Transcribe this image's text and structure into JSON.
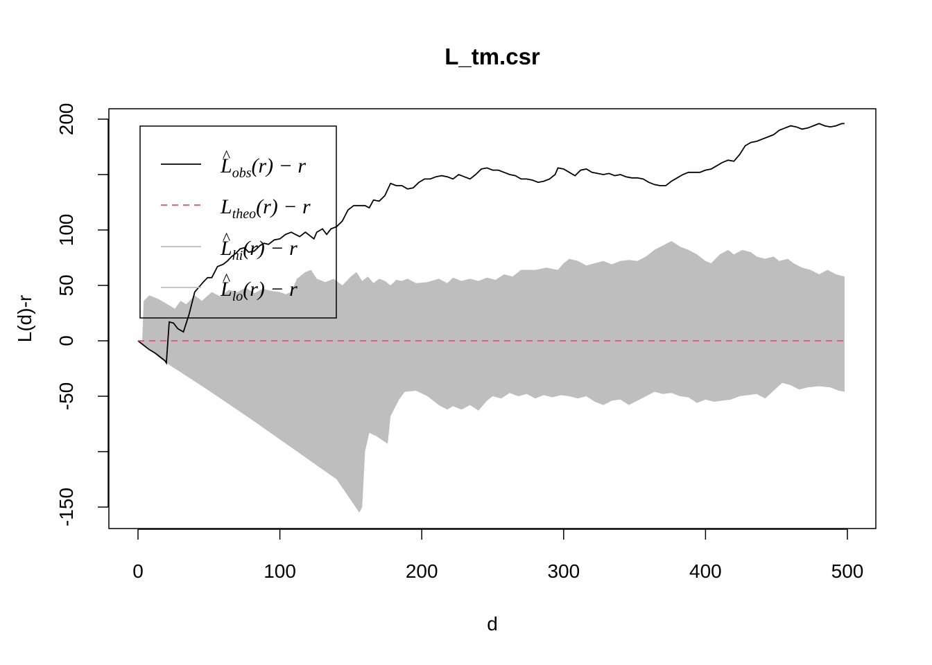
{
  "chart_data": {
    "type": "line",
    "title": "L_tm.csr",
    "xlabel": "d",
    "ylabel": "L(d)-r",
    "xlim": [
      -10,
      520
    ],
    "ylim": [
      -170,
      210
    ],
    "x_ticks": [
      0,
      100,
      200,
      300,
      400,
      500
    ],
    "x_tick_labels": [
      "0",
      "100",
      "200",
      "300",
      "400",
      "500"
    ],
    "y_ticks": [
      -150,
      -100,
      -50,
      0,
      50,
      100,
      150,
      200
    ],
    "y_tick_labels": [
      "-150",
      "",
      "-50",
      "0",
      "50",
      "100",
      "",
      "200"
    ],
    "legend_position": "top-left",
    "grid": false,
    "legend": [
      {
        "base": "L",
        "hat": true,
        "sub": "obs",
        "suffix": "(r) − r",
        "style": "solid",
        "color": "#000000"
      },
      {
        "base": "L",
        "hat": false,
        "sub": "theo",
        "suffix": "(r) − r",
        "style": "dashed",
        "color": "#DF536B"
      },
      {
        "base": "L",
        "hat": true,
        "sub": "hi",
        "suffix": "(r) − r",
        "style": "solid",
        "color": "#BEBEBE"
      },
      {
        "base": "L",
        "hat": true,
        "sub": "lo",
        "suffix": "(r) − r",
        "style": "solid",
        "color": "#BEBEBE"
      }
    ],
    "envelope": {
      "color": "#BEBEBE",
      "hi": [
        [
          0,
          0
        ],
        [
          3,
          0
        ],
        [
          4,
          36
        ],
        [
          8,
          41
        ],
        [
          14,
          38
        ],
        [
          22,
          32
        ],
        [
          26,
          29
        ],
        [
          30,
          36
        ],
        [
          34,
          33
        ],
        [
          40,
          41
        ],
        [
          45,
          36
        ],
        [
          52,
          44
        ],
        [
          58,
          40
        ],
        [
          64,
          46
        ],
        [
          70,
          44
        ],
        [
          76,
          48
        ],
        [
          82,
          43
        ],
        [
          88,
          47
        ],
        [
          94,
          45
        ],
        [
          100,
          44
        ],
        [
          104,
          42
        ],
        [
          108,
          44
        ],
        [
          112,
          56
        ],
        [
          118,
          62
        ],
        [
          122,
          64
        ],
        [
          126,
          56
        ],
        [
          132,
          53
        ],
        [
          138,
          56
        ],
        [
          144,
          50
        ],
        [
          150,
          58
        ],
        [
          154,
          62
        ],
        [
          158,
          54
        ],
        [
          162,
          58
        ],
        [
          166,
          52
        ],
        [
          170,
          56
        ],
        [
          174,
          54
        ],
        [
          178,
          50
        ],
        [
          182,
          55
        ],
        [
          186,
          54
        ],
        [
          190,
          56
        ],
        [
          196,
          52
        ],
        [
          204,
          53
        ],
        [
          212,
          56
        ],
        [
          218,
          52
        ],
        [
          222,
          57
        ],
        [
          228,
          54
        ],
        [
          234,
          56
        ],
        [
          240,
          54
        ],
        [
          246,
          57
        ],
        [
          252,
          55
        ],
        [
          258,
          60
        ],
        [
          264,
          58
        ],
        [
          270,
          64
        ],
        [
          280,
          64
        ],
        [
          288,
          66
        ],
        [
          296,
          64
        ],
        [
          300,
          70
        ],
        [
          304,
          74
        ],
        [
          310,
          72
        ],
        [
          316,
          68
        ],
        [
          322,
          70
        ],
        [
          328,
          72
        ],
        [
          334,
          69
        ],
        [
          340,
          72
        ],
        [
          346,
          73
        ],
        [
          352,
          72
        ],
        [
          358,
          76
        ],
        [
          364,
          82
        ],
        [
          370,
          86
        ],
        [
          376,
          90
        ],
        [
          382,
          85
        ],
        [
          388,
          82
        ],
        [
          394,
          78
        ],
        [
          400,
          72
        ],
        [
          404,
          70
        ],
        [
          410,
          78
        ],
        [
          416,
          82
        ],
        [
          420,
          78
        ],
        [
          426,
          82
        ],
        [
          432,
          80
        ],
        [
          436,
          76
        ],
        [
          442,
          74
        ],
        [
          448,
          76
        ],
        [
          452,
          72
        ],
        [
          458,
          74
        ],
        [
          462,
          70
        ],
        [
          468,
          66
        ],
        [
          474,
          64
        ],
        [
          480,
          60
        ],
        [
          486,
          64
        ],
        [
          492,
          60
        ],
        [
          498,
          58
        ]
      ],
      "lo": [
        [
          0,
          0
        ],
        [
          20,
          -20
        ],
        [
          50,
          -45
        ],
        [
          80,
          -71
        ],
        [
          110,
          -98
        ],
        [
          140,
          -125
        ],
        [
          156,
          -155
        ],
        [
          158,
          -150
        ],
        [
          160,
          -100
        ],
        [
          163,
          -83
        ],
        [
          168,
          -86
        ],
        [
          176,
          -93
        ],
        [
          178,
          -68
        ],
        [
          184,
          -53
        ],
        [
          188,
          -46
        ],
        [
          196,
          -45
        ],
        [
          204,
          -50
        ],
        [
          212,
          -58
        ],
        [
          218,
          -62
        ],
        [
          222,
          -59
        ],
        [
          228,
          -62
        ],
        [
          234,
          -58
        ],
        [
          240,
          -63
        ],
        [
          246,
          -54
        ],
        [
          250,
          -50
        ],
        [
          256,
          -52
        ],
        [
          262,
          -47
        ],
        [
          268,
          -50
        ],
        [
          274,
          -48
        ],
        [
          280,
          -52
        ],
        [
          286,
          -49
        ],
        [
          292,
          -51
        ],
        [
          298,
          -49
        ],
        [
          304,
          -50
        ],
        [
          310,
          -52
        ],
        [
          316,
          -50
        ],
        [
          322,
          -55
        ],
        [
          328,
          -58
        ],
        [
          334,
          -54
        ],
        [
          340,
          -53
        ],
        [
          346,
          -58
        ],
        [
          352,
          -54
        ],
        [
          358,
          -50
        ],
        [
          364,
          -46
        ],
        [
          370,
          -48
        ],
        [
          376,
          -47
        ],
        [
          382,
          -50
        ],
        [
          388,
          -51
        ],
        [
          394,
          -56
        ],
        [
          400,
          -53
        ],
        [
          406,
          -55
        ],
        [
          412,
          -54
        ],
        [
          418,
          -53
        ],
        [
          424,
          -50
        ],
        [
          430,
          -49
        ],
        [
          436,
          -48
        ],
        [
          442,
          -52
        ],
        [
          448,
          -45
        ],
        [
          454,
          -38
        ],
        [
          460,
          -40
        ],
        [
          466,
          -44
        ],
        [
          472,
          -42
        ],
        [
          480,
          -41
        ],
        [
          488,
          -42
        ],
        [
          494,
          -45
        ],
        [
          498,
          -46
        ]
      ]
    },
    "series": [
      {
        "name": "Lobs",
        "color": "#000000",
        "dash": "",
        "data": [
          [
            0,
            0
          ],
          [
            4,
            -4
          ],
          [
            8,
            -8
          ],
          [
            12,
            -11
          ],
          [
            16,
            -15
          ],
          [
            19,
            -18
          ],
          [
            20,
            -20
          ],
          [
            22,
            17
          ],
          [
            25,
            16
          ],
          [
            28,
            11
          ],
          [
            32,
            8
          ],
          [
            36,
            24
          ],
          [
            40,
            44
          ],
          [
            42,
            47
          ],
          [
            46,
            53
          ],
          [
            49,
            57
          ],
          [
            52,
            57
          ],
          [
            56,
            67
          ],
          [
            60,
            69
          ],
          [
            63,
            72
          ],
          [
            66,
            76
          ],
          [
            69,
            79
          ],
          [
            72,
            83
          ],
          [
            75,
            84
          ],
          [
            78,
            80
          ],
          [
            82,
            81
          ],
          [
            86,
            86
          ],
          [
            89,
            88
          ],
          [
            92,
            87
          ],
          [
            96,
            91
          ],
          [
            100,
            92
          ],
          [
            104,
            96
          ],
          [
            108,
            98
          ],
          [
            111,
            96
          ],
          [
            114,
            94
          ],
          [
            118,
            98
          ],
          [
            122,
            94
          ],
          [
            124,
            92
          ],
          [
            126,
            98
          ],
          [
            130,
            101
          ],
          [
            133,
            96
          ],
          [
            136,
            101
          ],
          [
            140,
            103
          ],
          [
            144,
            108
          ],
          [
            148,
            118
          ],
          [
            152,
            122
          ],
          [
            156,
            122
          ],
          [
            160,
            122
          ],
          [
            163,
            120
          ],
          [
            166,
            127
          ],
          [
            170,
            126
          ],
          [
            174,
            131
          ],
          [
            178,
            142
          ],
          [
            182,
            140
          ],
          [
            186,
            140
          ],
          [
            190,
            137
          ],
          [
            194,
            138
          ],
          [
            198,
            143
          ],
          [
            202,
            146
          ],
          [
            206,
            146
          ],
          [
            210,
            148
          ],
          [
            214,
            149
          ],
          [
            218,
            148
          ],
          [
            222,
            146
          ],
          [
            226,
            150
          ],
          [
            230,
            148
          ],
          [
            234,
            146
          ],
          [
            238,
            150
          ],
          [
            242,
            155
          ],
          [
            246,
            156
          ],
          [
            250,
            154
          ],
          [
            254,
            154
          ],
          [
            258,
            152
          ],
          [
            262,
            150
          ],
          [
            266,
            149
          ],
          [
            270,
            146
          ],
          [
            274,
            146
          ],
          [
            278,
            145
          ],
          [
            282,
            143
          ],
          [
            286,
            144
          ],
          [
            290,
            146
          ],
          [
            294,
            150
          ],
          [
            296,
            156
          ],
          [
            300,
            155
          ],
          [
            304,
            152
          ],
          [
            308,
            149
          ],
          [
            312,
            154
          ],
          [
            316,
            155
          ],
          [
            320,
            152
          ],
          [
            324,
            151
          ],
          [
            328,
            150
          ],
          [
            332,
            151
          ],
          [
            336,
            149
          ],
          [
            340,
            150
          ],
          [
            344,
            148
          ],
          [
            348,
            147
          ],
          [
            352,
            147
          ],
          [
            356,
            146
          ],
          [
            360,
            143
          ],
          [
            364,
            141
          ],
          [
            368,
            140
          ],
          [
            372,
            140
          ],
          [
            376,
            144
          ],
          [
            380,
            147
          ],
          [
            384,
            150
          ],
          [
            388,
            152
          ],
          [
            392,
            152
          ],
          [
            396,
            152
          ],
          [
            400,
            154
          ],
          [
            404,
            155
          ],
          [
            408,
            158
          ],
          [
            412,
            161
          ],
          [
            416,
            163
          ],
          [
            420,
            162
          ],
          [
            424,
            168
          ],
          [
            428,
            176
          ],
          [
            432,
            179
          ],
          [
            436,
            180
          ],
          [
            440,
            182
          ],
          [
            444,
            184
          ],
          [
            448,
            186
          ],
          [
            452,
            190
          ],
          [
            456,
            192
          ],
          [
            460,
            194
          ],
          [
            464,
            193
          ],
          [
            468,
            191
          ],
          [
            472,
            192
          ],
          [
            476,
            194
          ],
          [
            480,
            196
          ],
          [
            484,
            194
          ],
          [
            488,
            193
          ],
          [
            492,
            194
          ],
          [
            496,
            196
          ],
          [
            498,
            196
          ]
        ]
      },
      {
        "name": "Ltheo",
        "color": "#DF536B",
        "dash": "9,7",
        "data": [
          [
            0,
            0
          ],
          [
            498,
            0
          ]
        ]
      }
    ]
  }
}
